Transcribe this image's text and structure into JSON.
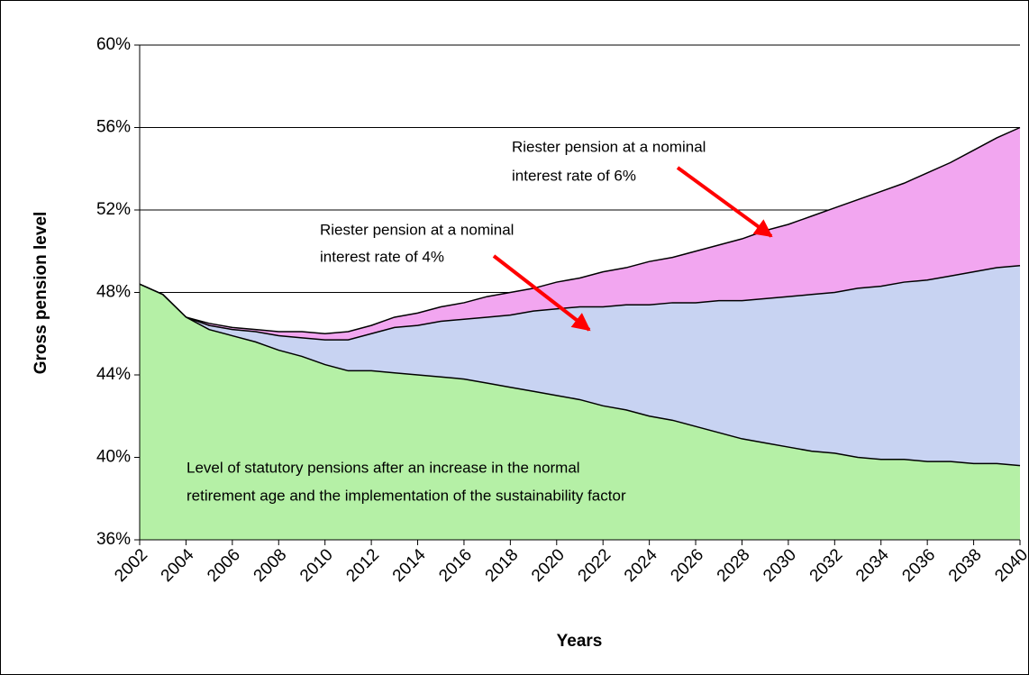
{
  "chart_data": {
    "type": "area",
    "y_label": "Gross pension level",
    "x_label": "Years",
    "x": [
      2002,
      2003,
      2004,
      2005,
      2006,
      2007,
      2008,
      2009,
      2010,
      2011,
      2012,
      2013,
      2014,
      2015,
      2016,
      2017,
      2018,
      2019,
      2020,
      2021,
      2022,
      2023,
      2024,
      2025,
      2026,
      2027,
      2028,
      2029,
      2030,
      2031,
      2032,
      2033,
      2034,
      2035,
      2036,
      2037,
      2038,
      2039,
      2040
    ],
    "xlim": [
      2002,
      2040
    ],
    "xticks": [
      2002,
      2004,
      2006,
      2008,
      2010,
      2012,
      2014,
      2016,
      2018,
      2020,
      2022,
      2024,
      2026,
      2028,
      2030,
      2032,
      2034,
      2036,
      2038,
      2040
    ],
    "ylim": [
      36,
      60
    ],
    "yticks": [
      {
        "value": 36,
        "label": "36%"
      },
      {
        "value": 40,
        "label": "40%"
      },
      {
        "value": 44,
        "label": "44%"
      },
      {
        "value": 48,
        "label": "48%"
      },
      {
        "value": 52,
        "label": "52%"
      },
      {
        "value": 56,
        "label": "56%"
      },
      {
        "value": 60,
        "label": "60%"
      }
    ],
    "grid": true,
    "series": [
      {
        "color": "#f2a6f0",
        "values": [
          48.4,
          47.9,
          46.8,
          46.5,
          46.3,
          46.2,
          46.1,
          46.1,
          46.0,
          46.1,
          46.4,
          46.8,
          47.0,
          47.3,
          47.5,
          47.8,
          48.0,
          48.2,
          48.5,
          48.7,
          49.0,
          49.2,
          49.5,
          49.7,
          50.0,
          50.3,
          50.6,
          51.0,
          51.3,
          51.7,
          52.1,
          52.5,
          52.9,
          53.3,
          53.8,
          54.3,
          54.9,
          55.5,
          56.0
        ]
      },
      {
        "color": "#c8d3f2",
        "values": [
          48.4,
          47.9,
          46.8,
          46.4,
          46.2,
          46.1,
          45.9,
          45.8,
          45.7,
          45.7,
          46.0,
          46.3,
          46.4,
          46.6,
          46.7,
          46.8,
          46.9,
          47.1,
          47.2,
          47.3,
          47.3,
          47.4,
          47.4,
          47.5,
          47.5,
          47.6,
          47.6,
          47.7,
          47.8,
          47.9,
          48.0,
          48.2,
          48.3,
          48.5,
          48.6,
          48.8,
          49.0,
          49.2,
          49.3
        ]
      },
      {
        "color": "#b5f0a6",
        "values": [
          48.4,
          47.9,
          46.8,
          46.2,
          45.9,
          45.6,
          45.2,
          44.9,
          44.5,
          44.2,
          44.2,
          44.1,
          44.0,
          43.9,
          43.8,
          43.6,
          43.4,
          43.2,
          43.0,
          42.8,
          42.5,
          42.3,
          42.0,
          41.8,
          41.5,
          41.2,
          40.9,
          40.7,
          40.5,
          40.3,
          40.2,
          40.0,
          39.9,
          39.9,
          39.8,
          39.8,
          39.7,
          39.7,
          39.6
        ]
      }
    ],
    "annotations": [
      {
        "lines": [
          "Riester pension at a nominal",
          "interest rate of 6%"
        ]
      },
      {
        "lines": [
          "Riester pension at a nominal",
          "interest rate of 4%"
        ]
      },
      {
        "lines": [
          "Level of statutory pensions after an increase in the normal",
          "retirement age and the implementation of the sustainability factor"
        ]
      }
    ]
  }
}
